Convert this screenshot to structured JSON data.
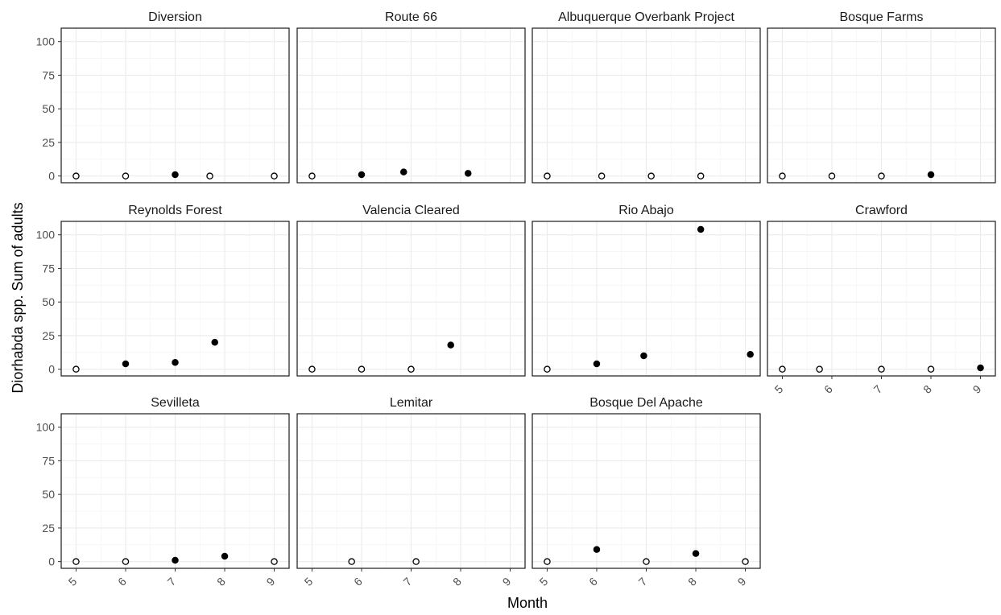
{
  "chart_data": {
    "type": "scatter",
    "layout": "facet-grid",
    "xlabel": "Month",
    "ylabel": "Diorhabda spp. Sum of adults",
    "xlim": [
      4.7,
      9.3
    ],
    "ylim": [
      -5,
      110
    ],
    "x_ticks": [
      "5",
      "6",
      "7",
      "8",
      "9"
    ],
    "y_ticks": [
      "0",
      "25",
      "50",
      "75",
      "100"
    ],
    "grid": true,
    "marker_styles": {
      "filled": "#000000",
      "open_fill": "#ffffff",
      "stroke": "#000000"
    },
    "panels": [
      {
        "title": "Diversion",
        "points": [
          {
            "x": 5.0,
            "y": 0,
            "filled": false
          },
          {
            "x": 6.0,
            "y": 0,
            "filled": false
          },
          {
            "x": 7.0,
            "y": 1,
            "filled": true
          },
          {
            "x": 7.7,
            "y": 0,
            "filled": false
          },
          {
            "x": 9.0,
            "y": 0,
            "filled": false
          }
        ]
      },
      {
        "title": "Route 66",
        "points": [
          {
            "x": 5.0,
            "y": 0,
            "filled": false
          },
          {
            "x": 6.0,
            "y": 1,
            "filled": true
          },
          {
            "x": 6.85,
            "y": 3,
            "filled": true
          },
          {
            "x": 8.15,
            "y": 2,
            "filled": true
          }
        ]
      },
      {
        "title": "Albuquerque Overbank Project",
        "points": [
          {
            "x": 5.0,
            "y": 0,
            "filled": false
          },
          {
            "x": 6.1,
            "y": 0,
            "filled": false
          },
          {
            "x": 7.1,
            "y": 0,
            "filled": false
          },
          {
            "x": 8.1,
            "y": 0,
            "filled": false
          }
        ]
      },
      {
        "title": "Bosque Farms",
        "points": [
          {
            "x": 5.0,
            "y": 0,
            "filled": false
          },
          {
            "x": 6.0,
            "y": 0,
            "filled": false
          },
          {
            "x": 7.0,
            "y": 0,
            "filled": false
          },
          {
            "x": 8.0,
            "y": 1,
            "filled": true
          }
        ]
      },
      {
        "title": "Reynolds Forest",
        "points": [
          {
            "x": 5.0,
            "y": 0,
            "filled": false
          },
          {
            "x": 6.0,
            "y": 4,
            "filled": true
          },
          {
            "x": 7.0,
            "y": 5,
            "filled": true
          },
          {
            "x": 7.8,
            "y": 20,
            "filled": true
          }
        ]
      },
      {
        "title": "Valencia Cleared",
        "points": [
          {
            "x": 5.0,
            "y": 0,
            "filled": false
          },
          {
            "x": 6.0,
            "y": 0,
            "filled": false
          },
          {
            "x": 7.0,
            "y": 0,
            "filled": false
          },
          {
            "x": 7.8,
            "y": 18,
            "filled": true
          }
        ]
      },
      {
        "title": "Rio Abajo",
        "points": [
          {
            "x": 5.0,
            "y": 0,
            "filled": false
          },
          {
            "x": 6.0,
            "y": 4,
            "filled": true
          },
          {
            "x": 6.95,
            "y": 10,
            "filled": true
          },
          {
            "x": 8.1,
            "y": 104,
            "filled": true
          },
          {
            "x": 9.1,
            "y": 11,
            "filled": true
          }
        ]
      },
      {
        "title": "Crawford",
        "points": [
          {
            "x": 5.0,
            "y": 0,
            "filled": false
          },
          {
            "x": 5.75,
            "y": 0,
            "filled": false
          },
          {
            "x": 7.0,
            "y": 0,
            "filled": false
          },
          {
            "x": 8.0,
            "y": 0,
            "filled": false
          },
          {
            "x": 9.0,
            "y": 1,
            "filled": true
          }
        ]
      },
      {
        "title": "Sevilleta",
        "points": [
          {
            "x": 5.0,
            "y": 0,
            "filled": false
          },
          {
            "x": 6.0,
            "y": 0,
            "filled": false
          },
          {
            "x": 7.0,
            "y": 1,
            "filled": true
          },
          {
            "x": 8.0,
            "y": 4,
            "filled": true
          },
          {
            "x": 9.0,
            "y": 0,
            "filled": false
          }
        ]
      },
      {
        "title": "Lemitar",
        "points": [
          {
            "x": 5.8,
            "y": 0,
            "filled": false
          },
          {
            "x": 7.1,
            "y": 0,
            "filled": false
          }
        ]
      },
      {
        "title": "Bosque Del Apache",
        "points": [
          {
            "x": 5.0,
            "y": 0,
            "filled": false
          },
          {
            "x": 6.0,
            "y": 9,
            "filled": true
          },
          {
            "x": 7.0,
            "y": 0,
            "filled": false
          },
          {
            "x": 8.0,
            "y": 6,
            "filled": true
          },
          {
            "x": 9.0,
            "y": 0,
            "filled": false
          }
        ]
      }
    ]
  }
}
